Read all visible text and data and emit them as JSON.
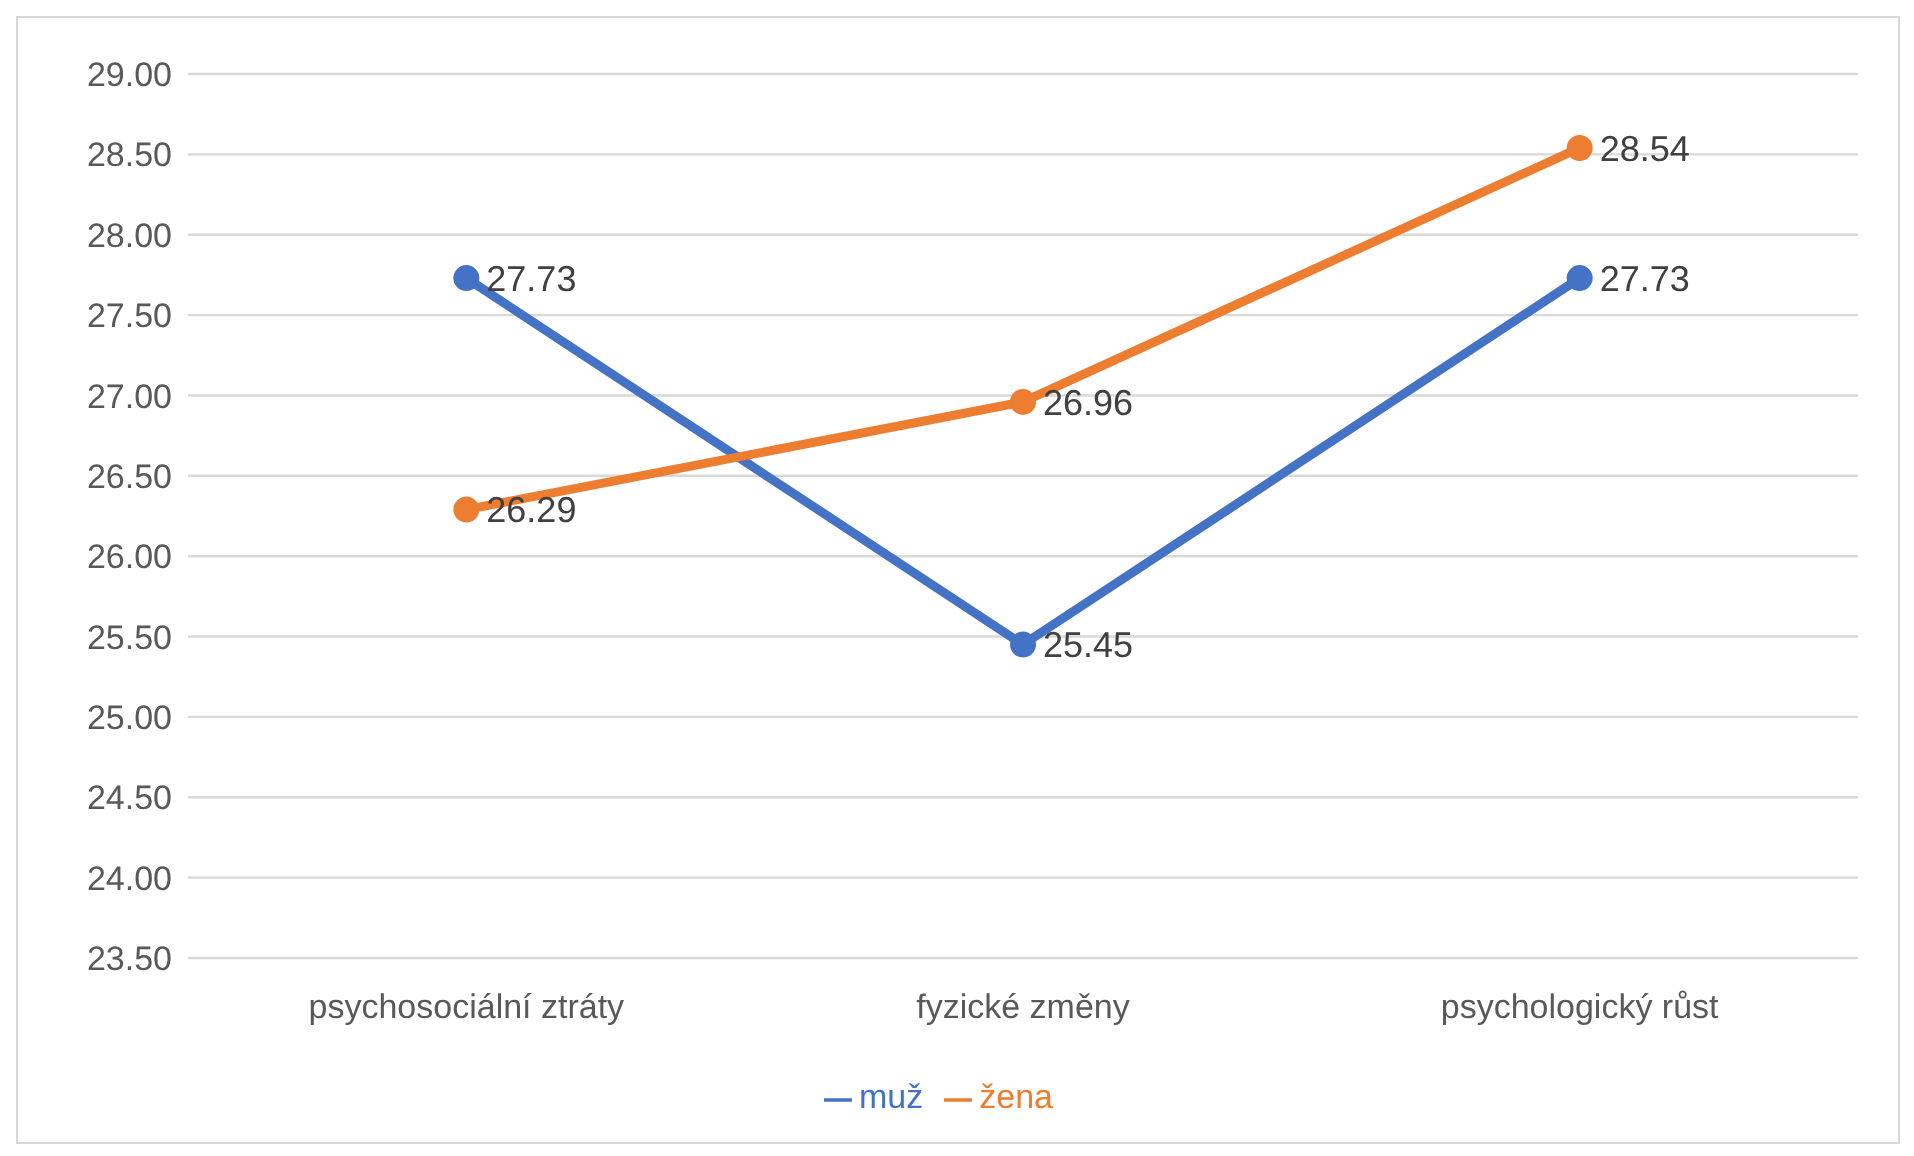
{
  "chart_data": {
    "type": "line",
    "categories": [
      "psychosociální ztráty",
      "fyzické změny",
      "psychologický růst"
    ],
    "series": [
      {
        "name": "muž",
        "color": "#4472c4",
        "values": [
          27.73,
          25.45,
          27.73
        ]
      },
      {
        "name": "žena",
        "color": "#ed7d31",
        "values": [
          26.29,
          26.96,
          28.54
        ]
      }
    ],
    "ylim": [
      23.5,
      29
    ],
    "yticks": [
      {
        "value": 23.5,
        "label": "23.50"
      },
      {
        "value": 24,
        "label": "24.00"
      },
      {
        "value": 24.5,
        "label": "24.50"
      },
      {
        "value": 25,
        "label": "25.00"
      },
      {
        "value": 25.5,
        "label": "25.50"
      },
      {
        "value": 26,
        "label": "26.00"
      },
      {
        "value": 26.5,
        "label": "26.50"
      },
      {
        "value": 27,
        "label": "27.00"
      },
      {
        "value": 27.5,
        "label": "27.50"
      },
      {
        "value": 28,
        "label": "28.00"
      },
      {
        "value": 28.5,
        "label": "28.50"
      },
      {
        "value": 29,
        "label": "29.00"
      }
    ],
    "grid": "y",
    "legend": "bottom",
    "marker": "circle",
    "line_style": "solid",
    "data_labels": true
  }
}
